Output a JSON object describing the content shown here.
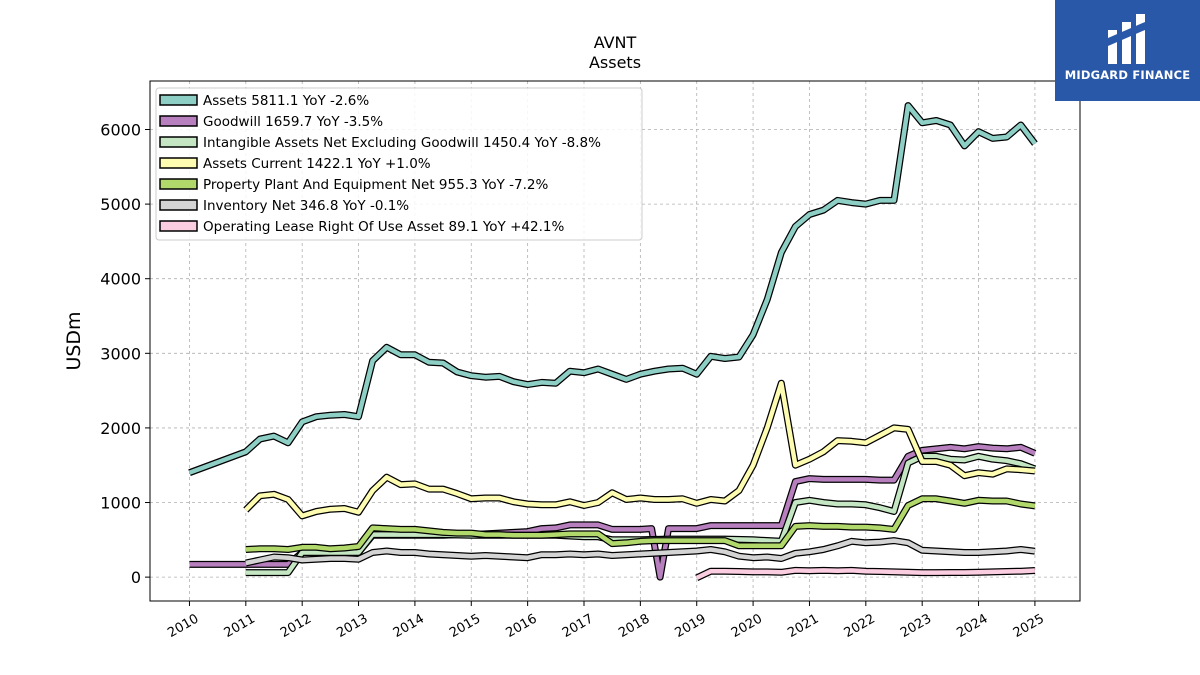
{
  "brand": {
    "name": "MIDGARD FINANCE",
    "color": "#2a58a8",
    "icon": "midgard-logo-icon"
  },
  "chart_data": {
    "type": "line",
    "title": "AVNT",
    "subtitle": "Assets",
    "xlabel": "",
    "ylabel": "USDm",
    "xlim": [
      2009.3,
      2025.8
    ],
    "ylim": [
      -320,
      6650
    ],
    "yticks": [
      0,
      1000,
      2000,
      3000,
      4000,
      5000,
      6000
    ],
    "xticks": [
      "2010",
      "2011",
      "2012",
      "2013",
      "2014",
      "2015",
      "2016",
      "2017",
      "2018",
      "2019",
      "2020",
      "2021",
      "2022",
      "2023",
      "2024",
      "2025"
    ],
    "grid": true,
    "legend_position": "top-left",
    "series": [
      {
        "name": "Assets  5811.1 YoY -2.6%",
        "color": "#8ecfc5",
        "x": [
          2010.0,
          2011.0,
          2011.25,
          2011.5,
          2011.75,
          2012.0,
          2012.25,
          2012.5,
          2012.75,
          2013.0,
          2013.25,
          2013.5,
          2013.75,
          2014.0,
          2014.25,
          2014.5,
          2014.75,
          2015.0,
          2015.25,
          2015.5,
          2015.75,
          2016.0,
          2016.25,
          2016.5,
          2016.75,
          2017.0,
          2017.25,
          2017.5,
          2017.75,
          2018.0,
          2018.25,
          2018.5,
          2018.75,
          2019.0,
          2019.25,
          2019.5,
          2019.75,
          2020.0,
          2020.25,
          2020.5,
          2020.75,
          2021.0,
          2021.25,
          2021.5,
          2021.75,
          2022.0,
          2022.25,
          2022.5,
          2022.75,
          2023.0,
          2023.25,
          2023.5,
          2023.75,
          2024.0,
          2024.25,
          2024.5,
          2024.75,
          2025.0
        ],
        "y": [
          1400,
          1680,
          1850,
          1890,
          1800,
          2080,
          2150,
          2170,
          2180,
          2150,
          2900,
          3080,
          2980,
          2980,
          2880,
          2870,
          2750,
          2700,
          2680,
          2690,
          2620,
          2580,
          2610,
          2600,
          2760,
          2740,
          2790,
          2720,
          2650,
          2720,
          2760,
          2790,
          2800,
          2720,
          2960,
          2930,
          2950,
          3250,
          3720,
          4350,
          4700,
          4860,
          4920,
          5050,
          5020,
          5000,
          5050,
          5050,
          6320,
          6090,
          6120,
          6060,
          5780,
          5970,
          5880,
          5900,
          6060,
          5811
        ]
      },
      {
        "name": "Goodwill  1659.7 YoY -3.5%",
        "color": "#b77fbe",
        "x": [
          2010.0,
          2011.0,
          2011.25,
          2011.5,
          2011.75,
          2012.0,
          2012.25,
          2012.5,
          2012.75,
          2013.0,
          2013.25,
          2013.5,
          2013.75,
          2014.0,
          2014.25,
          2014.5,
          2014.75,
          2015.0,
          2015.25,
          2015.5,
          2015.75,
          2016.0,
          2016.25,
          2016.5,
          2016.75,
          2017.0,
          2017.25,
          2017.5,
          2017.75,
          2018.0,
          2018.2,
          2018.35,
          2018.5,
          2018.75,
          2019.0,
          2019.25,
          2019.5,
          2019.75,
          2020.0,
          2020.25,
          2020.5,
          2020.75,
          2021.0,
          2021.25,
          2021.5,
          2021.75,
          2022.0,
          2022.25,
          2022.5,
          2022.75,
          2023.0,
          2023.25,
          2023.5,
          2023.75,
          2024.0,
          2024.25,
          2024.5,
          2024.75,
          2025.0
        ],
        "y": [
          170,
          170,
          170,
          170,
          170,
          330,
          330,
          330,
          330,
          330,
          560,
          560,
          560,
          560,
          560,
          560,
          570,
          570,
          580,
          590,
          600,
          610,
          650,
          660,
          700,
          700,
          700,
          640,
          640,
          640,
          650,
          0,
          650,
          650,
          650,
          690,
          690,
          690,
          690,
          690,
          690,
          1280,
          1320,
          1310,
          1310,
          1310,
          1310,
          1300,
          1300,
          1620,
          1700,
          1720,
          1740,
          1720,
          1750,
          1730,
          1720,
          1740,
          1660
        ]
      },
      {
        "name": "Intangible Assets Net Excluding Goodwill  1450.4 YoY -8.8%",
        "color": "#c4e6c2",
        "x": [
          2011.0,
          2011.25,
          2011.5,
          2011.75,
          2012.0,
          2012.25,
          2012.5,
          2012.75,
          2013.0,
          2013.25,
          2013.5,
          2013.75,
          2014.0,
          2014.5,
          2015.0,
          2015.5,
          2016.0,
          2016.5,
          2017.0,
          2017.25,
          2017.5,
          2018.0,
          2018.5,
          2019.0,
          2019.5,
          2020.0,
          2020.5,
          2020.75,
          2021.0,
          2021.25,
          2021.5,
          2021.75,
          2022.0,
          2022.25,
          2022.5,
          2022.75,
          2023.0,
          2023.25,
          2023.5,
          2023.75,
          2024.0,
          2024.25,
          2024.5,
          2024.75,
          2025.0
        ],
        "y": [
          60,
          60,
          60,
          60,
          330,
          330,
          330,
          330,
          330,
          570,
          570,
          570,
          570,
          570,
          560,
          560,
          560,
          560,
          540,
          540,
          500,
          500,
          510,
          510,
          510,
          500,
          480,
          1000,
          1030,
          1000,
          980,
          980,
          970,
          930,
          880,
          1530,
          1620,
          1620,
          1580,
          1570,
          1620,
          1580,
          1560,
          1520,
          1450
        ]
      },
      {
        "name": "Assets Current  1422.1 YoY +1.0%",
        "color": "#fdfcb0",
        "x": [
          2011.0,
          2011.25,
          2011.5,
          2011.75,
          2012.0,
          2012.25,
          2012.5,
          2012.75,
          2013.0,
          2013.25,
          2013.5,
          2013.75,
          2014.0,
          2014.25,
          2014.5,
          2014.75,
          2015.0,
          2015.25,
          2015.5,
          2015.75,
          2016.0,
          2016.25,
          2016.5,
          2016.75,
          2017.0,
          2017.25,
          2017.5,
          2017.75,
          2018.0,
          2018.25,
          2018.5,
          2018.75,
          2019.0,
          2019.25,
          2019.5,
          2019.75,
          2020.0,
          2020.25,
          2020.5,
          2020.75,
          2021.0,
          2021.25,
          2021.5,
          2021.75,
          2022.0,
          2022.25,
          2022.5,
          2022.75,
          2023.0,
          2023.25,
          2023.5,
          2023.75,
          2024.0,
          2024.25,
          2024.5,
          2024.75,
          2025.0
        ],
        "y": [
          900,
          1090,
          1110,
          1040,
          820,
          880,
          910,
          920,
          870,
          1160,
          1340,
          1240,
          1250,
          1180,
          1180,
          1120,
          1050,
          1060,
          1060,
          1010,
          980,
          970,
          970,
          1010,
          960,
          1000,
          1130,
          1040,
          1060,
          1040,
          1040,
          1050,
          990,
          1040,
          1020,
          1160,
          1500,
          2000,
          2600,
          1500,
          1580,
          1680,
          1830,
          1820,
          1800,
          1900,
          2000,
          1980,
          1550,
          1550,
          1500,
          1360,
          1400,
          1380,
          1450,
          1440,
          1422
        ]
      },
      {
        "name": "Property Plant And Equipment Net  955.3 YoY -7.2%",
        "color": "#b1d86a",
        "x": [
          2011.0,
          2011.25,
          2011.5,
          2011.75,
          2012.0,
          2012.25,
          2012.5,
          2012.75,
          2013.0,
          2013.25,
          2013.5,
          2013.75,
          2014.0,
          2014.25,
          2014.5,
          2014.75,
          2015.0,
          2015.25,
          2015.5,
          2015.75,
          2016.0,
          2016.25,
          2016.5,
          2016.75,
          2017.0,
          2017.25,
          2017.5,
          2017.75,
          2018.0,
          2018.25,
          2018.5,
          2018.75,
          2019.0,
          2019.25,
          2019.5,
          2019.75,
          2020.0,
          2020.25,
          2020.5,
          2020.75,
          2021.0,
          2021.25,
          2021.5,
          2021.75,
          2022.0,
          2022.25,
          2022.5,
          2022.75,
          2023.0,
          2023.25,
          2023.5,
          2023.75,
          2024.0,
          2024.25,
          2024.5,
          2024.75,
          2025.0
        ],
        "y": [
          370,
          380,
          380,
          370,
          400,
          400,
          380,
          390,
          410,
          660,
          650,
          640,
          640,
          620,
          600,
          590,
          590,
          570,
          570,
          560,
          560,
          560,
          570,
          580,
          580,
          580,
          450,
          460,
          480,
          490,
          490,
          490,
          490,
          490,
          490,
          420,
          420,
          420,
          420,
          680,
          690,
          680,
          680,
          670,
          670,
          660,
          640,
          960,
          1050,
          1050,
          1020,
          990,
          1030,
          1020,
          1020,
          980,
          955
        ]
      },
      {
        "name": "Inventory Net  346.8 YoY -0.1%",
        "color": "#d4d4d4",
        "x": [
          2011.0,
          2011.25,
          2011.5,
          2011.75,
          2012.0,
          2012.25,
          2012.5,
          2012.75,
          2013.0,
          2013.25,
          2013.5,
          2013.75,
          2014.0,
          2014.25,
          2014.5,
          2014.75,
          2015.0,
          2015.25,
          2015.5,
          2015.75,
          2016.0,
          2016.25,
          2016.5,
          2016.75,
          2017.0,
          2017.25,
          2017.5,
          2017.75,
          2018.0,
          2018.25,
          2018.5,
          2018.75,
          2019.0,
          2019.25,
          2019.5,
          2019.75,
          2020.0,
          2020.25,
          2020.5,
          2020.75,
          2021.0,
          2021.25,
          2021.5,
          2021.75,
          2022.0,
          2022.25,
          2022.5,
          2022.75,
          2023.0,
          2023.25,
          2023.5,
          2023.75,
          2024.0,
          2024.25,
          2024.5,
          2024.75,
          2025.0
        ],
        "y": [
          190,
          230,
          270,
          260,
          230,
          240,
          250,
          250,
          240,
          330,
          350,
          330,
          330,
          310,
          300,
          290,
          280,
          290,
          280,
          270,
          260,
          300,
          300,
          310,
          300,
          310,
          290,
          300,
          310,
          320,
          330,
          340,
          350,
          370,
          340,
          280,
          260,
          270,
          250,
          320,
          340,
          370,
          420,
          480,
          460,
          470,
          490,
          460,
          360,
          350,
          340,
          330,
          330,
          340,
          350,
          370,
          347
        ]
      },
      {
        "name": "Operating Lease Right Of Use Asset  89.1 YoY +42.1%",
        "color": "#fbcde0",
        "x": [
          2019.0,
          2019.25,
          2019.5,
          2019.75,
          2020.0,
          2020.25,
          2020.5,
          2020.75,
          2021.0,
          2021.25,
          2021.5,
          2021.75,
          2022.0,
          2022.25,
          2022.5,
          2022.75,
          2023.0,
          2023.25,
          2023.5,
          2023.75,
          2024.0,
          2024.25,
          2024.5,
          2024.75,
          2025.0
        ],
        "y": [
          -10,
          80,
          80,
          75,
          70,
          70,
          65,
          90,
          85,
          90,
          85,
          90,
          80,
          75,
          70,
          65,
          60,
          60,
          62,
          62,
          65,
          70,
          75,
          80,
          89
        ]
      }
    ]
  }
}
